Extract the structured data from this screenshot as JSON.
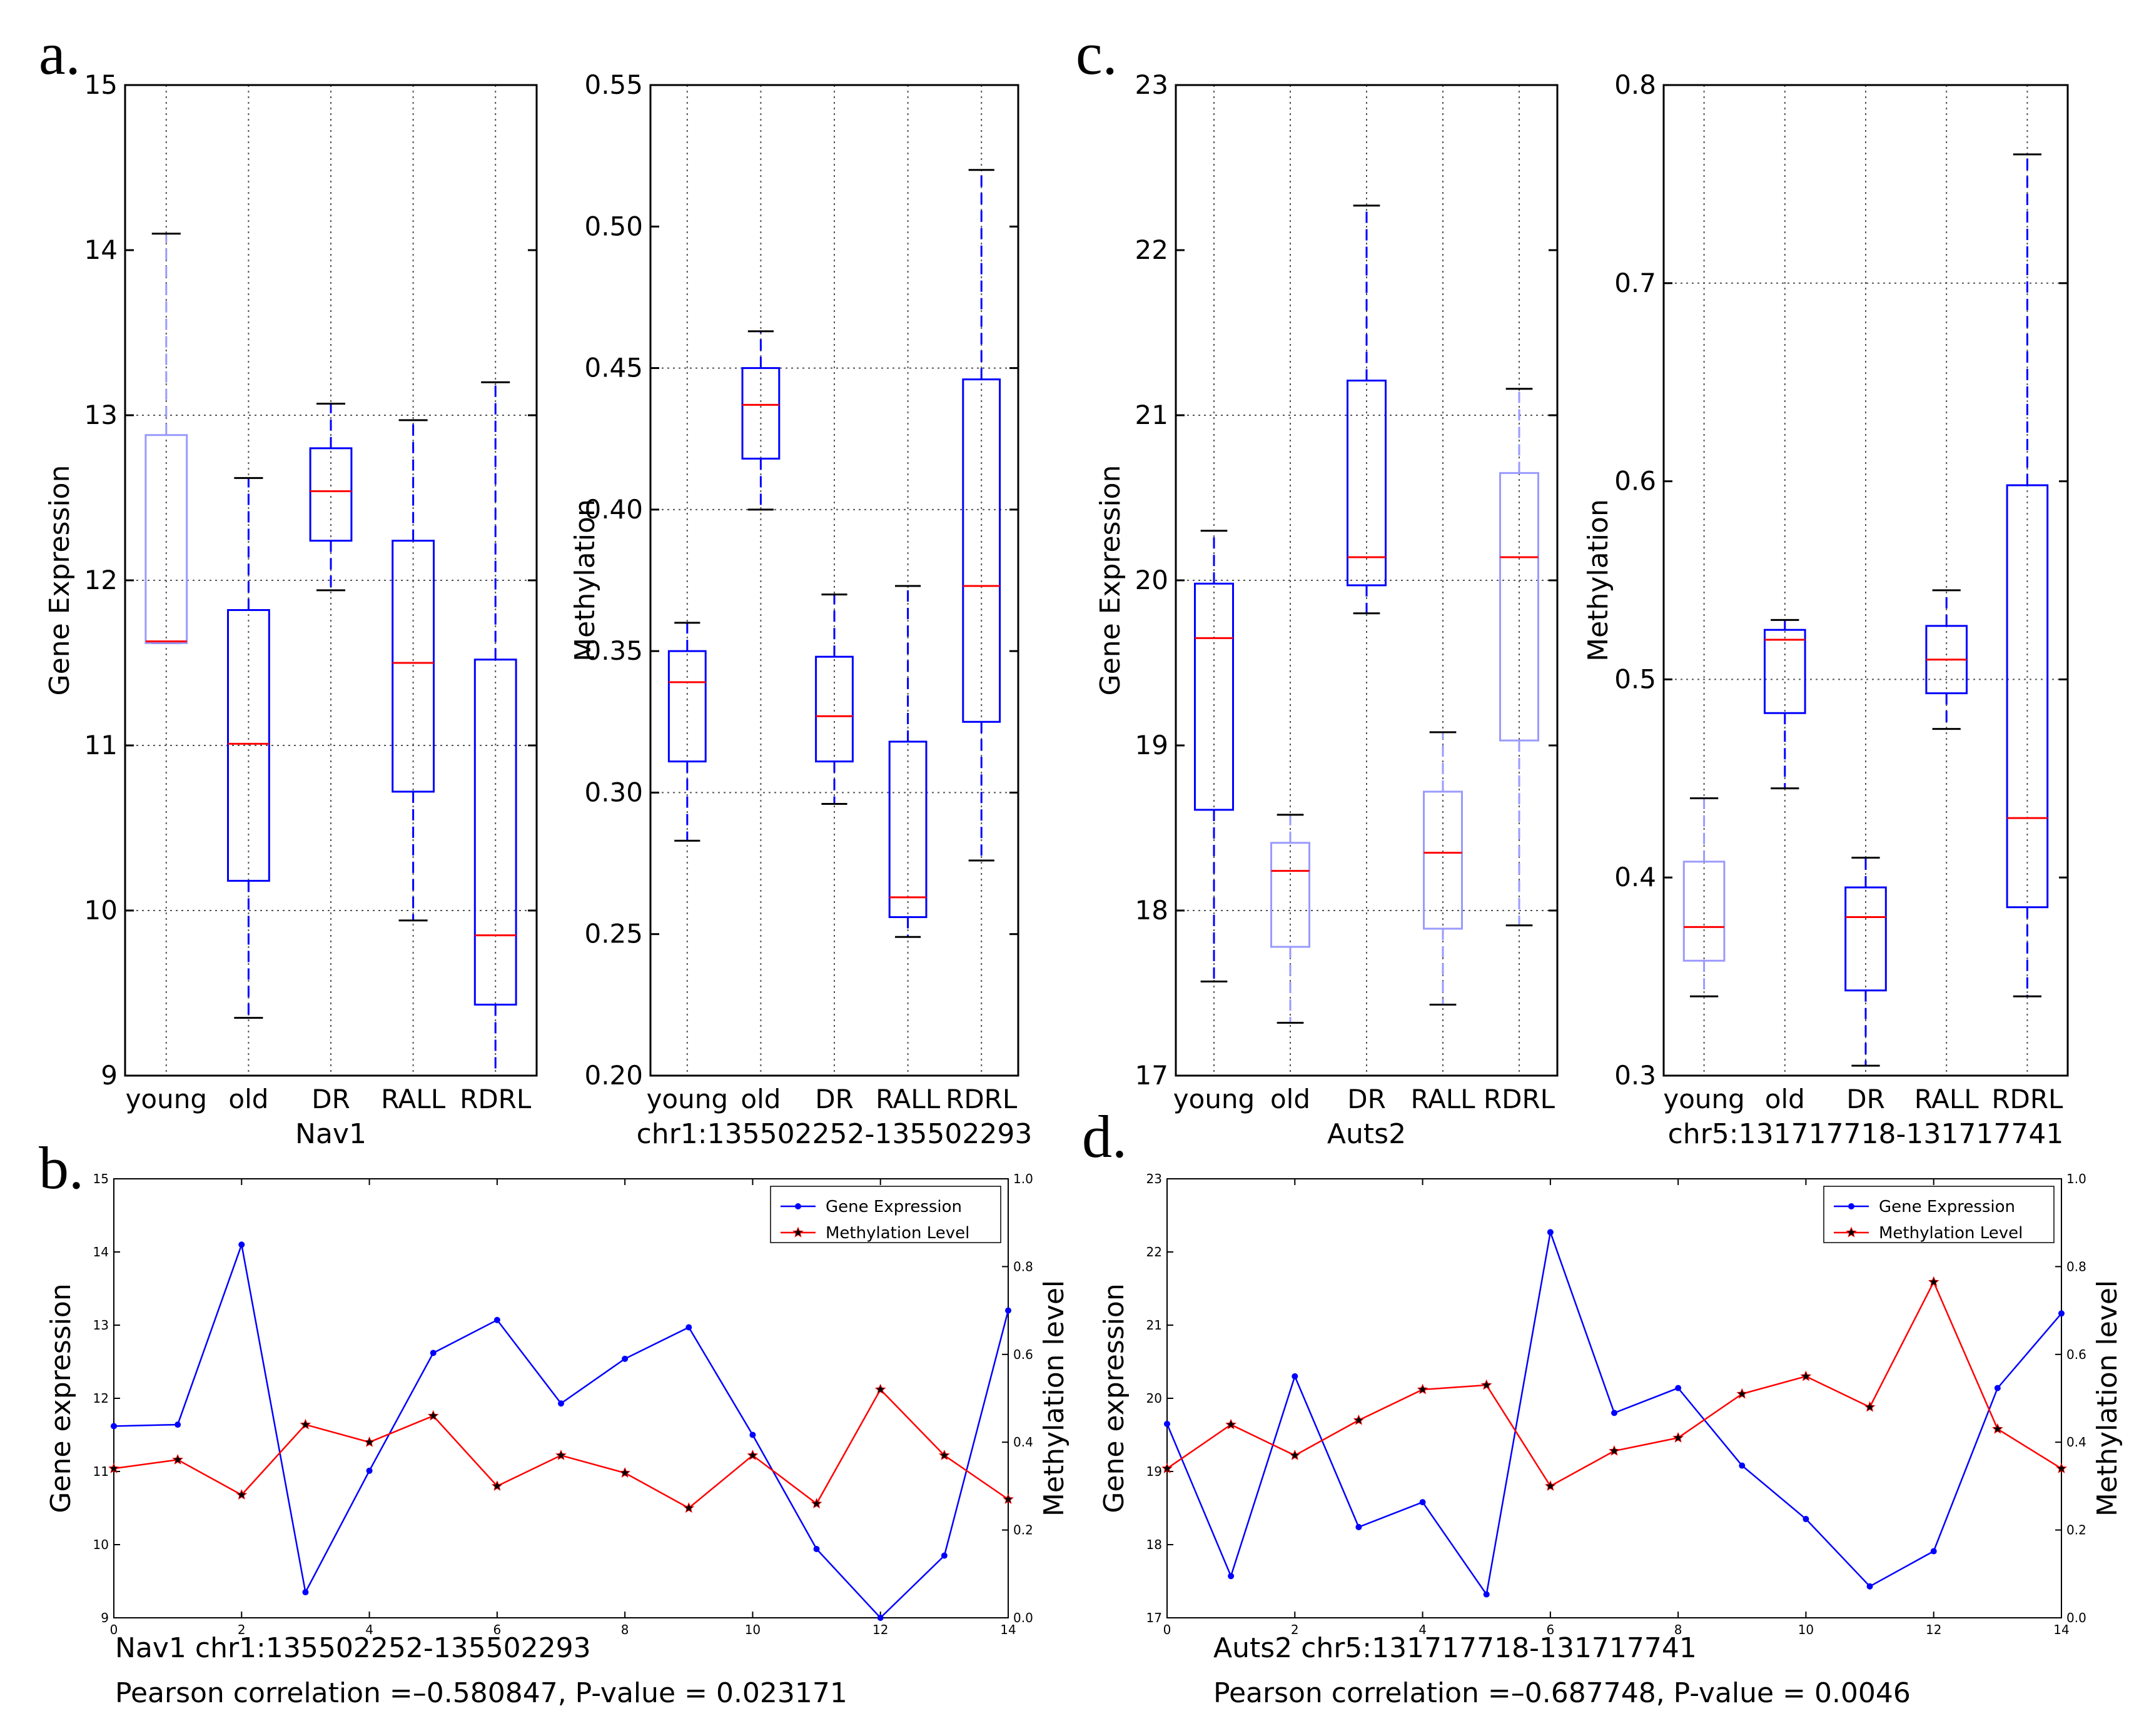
{
  "colors": {
    "blue": "#0000ff",
    "red": "#ff0000",
    "light_blue": "#9a9aff",
    "grid": "#555555"
  },
  "panel_letters": [
    "a.",
    "b.",
    "c.",
    "d."
  ],
  "chart_data": [
    {
      "type": "boxplot",
      "panel": "a",
      "xlabel": "Nav1",
      "ylabel": "Gene Expression",
      "categories": [
        "young",
        "old",
        "DR",
        "RALL",
        "RDRL"
      ],
      "ylim": [
        9,
        15
      ],
      "yticks": [
        9,
        10,
        11,
        12,
        13,
        14,
        15
      ],
      "ytick_labels": [
        "9",
        "10",
        "11",
        "12",
        "13",
        "14",
        "15"
      ],
      "hgrid": [
        10,
        11,
        12,
        13
      ],
      "boxes": [
        {
          "whislo": 11.62,
          "q1": 11.62,
          "med": 11.63,
          "q3": 12.88,
          "whishi": 14.1,
          "faded": true
        },
        {
          "whislo": 9.35,
          "q1": 10.18,
          "med": 11.01,
          "q3": 11.82,
          "whishi": 12.62,
          "faded": false
        },
        {
          "whislo": 11.94,
          "q1": 12.24,
          "med": 12.54,
          "q3": 12.8,
          "whishi": 13.07,
          "faded": false
        },
        {
          "whislo": 9.94,
          "q1": 10.72,
          "med": 11.5,
          "q3": 12.24,
          "whishi": 12.97,
          "faded": false
        },
        {
          "whislo": 9.0,
          "q1": 9.43,
          "med": 9.85,
          "q3": 11.52,
          "whishi": 13.2,
          "faded": false
        }
      ]
    },
    {
      "type": "boxplot",
      "panel": "a",
      "xlabel": "chr1:135502252-135502293",
      "ylabel": "Methylation",
      "categories": [
        "young",
        "old",
        "DR",
        "RALL",
        "RDRL"
      ],
      "ylim": [
        0.2,
        0.55
      ],
      "yticks": [
        0.2,
        0.25,
        0.3,
        0.35,
        0.4,
        0.45,
        0.5,
        0.55
      ],
      "ytick_labels": [
        "0.20",
        "0.25",
        "0.30",
        "0.35",
        "0.40",
        "0.45",
        "0.50",
        "0.55"
      ],
      "hgrid": [
        0.3,
        0.4,
        0.45
      ],
      "boxes": [
        {
          "whislo": 0.283,
          "q1": 0.311,
          "med": 0.339,
          "q3": 0.35,
          "whishi": 0.36,
          "faded": false
        },
        {
          "whislo": 0.4,
          "q1": 0.418,
          "med": 0.437,
          "q3": 0.45,
          "whishi": 0.463,
          "faded": false
        },
        {
          "whislo": 0.296,
          "q1": 0.311,
          "med": 0.327,
          "q3": 0.348,
          "whishi": 0.37,
          "faded": false
        },
        {
          "whislo": 0.249,
          "q1": 0.256,
          "med": 0.263,
          "q3": 0.318,
          "whishi": 0.373,
          "faded": false
        },
        {
          "whislo": 0.276,
          "q1": 0.325,
          "med": 0.373,
          "q3": 0.446,
          "whishi": 0.52,
          "faded": false
        }
      ]
    },
    {
      "type": "boxplot",
      "panel": "c",
      "xlabel": "Auts2",
      "ylabel": "Gene Expression",
      "categories": [
        "young",
        "old",
        "DR",
        "RALL",
        "RDRL"
      ],
      "ylim": [
        17,
        23
      ],
      "yticks": [
        17,
        18,
        19,
        20,
        21,
        22,
        23
      ],
      "ytick_labels": [
        "17",
        "18",
        "19",
        "20",
        "21",
        "22",
        "23"
      ],
      "hgrid": [
        18,
        20,
        21
      ],
      "boxes": [
        {
          "whislo": 17.57,
          "q1": 18.61,
          "med": 19.65,
          "q3": 19.98,
          "whishi": 20.3,
          "faded": false
        },
        {
          "whislo": 17.32,
          "q1": 17.78,
          "med": 18.24,
          "q3": 18.41,
          "whishi": 18.58,
          "faded": true
        },
        {
          "whislo": 19.8,
          "q1": 19.97,
          "med": 20.14,
          "q3": 21.21,
          "whishi": 22.27,
          "faded": false
        },
        {
          "whislo": 17.43,
          "q1": 17.89,
          "med": 18.35,
          "q3": 18.72,
          "whishi": 19.08,
          "faded": true
        },
        {
          "whislo": 17.91,
          "q1": 19.03,
          "med": 20.14,
          "q3": 20.65,
          "whishi": 21.16,
          "faded": true
        }
      ]
    },
    {
      "type": "boxplot",
      "panel": "c",
      "xlabel": "chr5:131717718-131717741",
      "ylabel": "Methylation",
      "categories": [
        "young",
        "old",
        "DR",
        "RALL",
        "RDRL"
      ],
      "ylim": [
        0.3,
        0.8
      ],
      "yticks": [
        0.3,
        0.4,
        0.5,
        0.6,
        0.7,
        0.8
      ],
      "ytick_labels": [
        "0.3",
        "0.4",
        "0.5",
        "0.6",
        "0.7",
        "0.8"
      ],
      "hgrid": [
        0.5,
        0.7
      ],
      "boxes": [
        {
          "whislo": 0.34,
          "q1": 0.358,
          "med": 0.375,
          "q3": 0.408,
          "whishi": 0.44,
          "faded": true
        },
        {
          "whislo": 0.445,
          "q1": 0.483,
          "med": 0.52,
          "q3": 0.525,
          "whishi": 0.53,
          "faded": false
        },
        {
          "whislo": 0.305,
          "q1": 0.343,
          "med": 0.38,
          "q3": 0.395,
          "whishi": 0.41,
          "faded": false
        },
        {
          "whislo": 0.475,
          "q1": 0.493,
          "med": 0.51,
          "q3": 0.527,
          "whishi": 0.545,
          "faded": false
        },
        {
          "whislo": 0.34,
          "q1": 0.385,
          "med": 0.43,
          "q3": 0.598,
          "whishi": 0.765,
          "faded": false
        }
      ]
    },
    {
      "type": "line",
      "panel": "b",
      "ylabel_left": "Gene expression",
      "ylabel_right": "Methylation level",
      "xlim": [
        0,
        14
      ],
      "xticks": [
        0,
        2,
        4,
        6,
        8,
        10,
        12,
        14
      ],
      "ylim_left": [
        9,
        15
      ],
      "yticks_left": [
        9,
        10,
        11,
        12,
        13,
        14,
        15
      ],
      "ylim_right": [
        0,
        1
      ],
      "yticks_right": [
        "0.0",
        "0.2",
        "0.4",
        "0.6",
        "0.8",
        "1.0"
      ],
      "series": [
        {
          "name": "Gene Expression",
          "axis": "left",
          "marker": "dot",
          "values": [
            11.62,
            11.64,
            14.1,
            9.35,
            11.01,
            12.62,
            13.07,
            11.93,
            12.54,
            12.97,
            11.5,
            9.94,
            9.0,
            9.85,
            13.2
          ]
        },
        {
          "name": "Methylation Level",
          "axis": "right",
          "marker": "star",
          "values": [
            0.34,
            0.36,
            0.28,
            0.44,
            0.4,
            0.46,
            0.3,
            0.37,
            0.33,
            0.25,
            0.37,
            0.26,
            0.52,
            0.37,
            0.27
          ]
        }
      ],
      "caption_line1": "Nav1  chr1:135502252-135502293",
      "caption_line2": "Pearson correlation =–0.580847, P-value = 0.023171"
    },
    {
      "type": "line",
      "panel": "d",
      "ylabel_left": "Gene expression",
      "ylabel_right": "Methylation level",
      "xlim": [
        0,
        14
      ],
      "xticks": [
        0,
        2,
        4,
        6,
        8,
        10,
        12,
        14
      ],
      "ylim_left": [
        17,
        23
      ],
      "yticks_left": [
        17,
        18,
        19,
        20,
        21,
        22,
        23
      ],
      "ylim_right": [
        0,
        1
      ],
      "yticks_right": [
        "0.0",
        "0.2",
        "0.4",
        "0.6",
        "0.8",
        "1.0"
      ],
      "series": [
        {
          "name": "Gene Expression",
          "axis": "left",
          "marker": "dot",
          "values": [
            19.65,
            17.57,
            20.3,
            18.24,
            18.58,
            17.32,
            22.27,
            19.8,
            20.14,
            19.08,
            18.35,
            17.43,
            17.91,
            20.14,
            21.16
          ]
        },
        {
          "name": "Methylation Level",
          "axis": "right",
          "marker": "star",
          "values": [
            0.34,
            0.44,
            0.37,
            0.45,
            0.52,
            0.53,
            0.3,
            0.38,
            0.41,
            0.51,
            0.55,
            0.48,
            0.765,
            0.43,
            0.34
          ]
        }
      ],
      "caption_line1": "Auts2  chr5:131717718-131717741",
      "caption_line2": "Pearson correlation =–0.687748, P-value = 0.0046"
    }
  ]
}
